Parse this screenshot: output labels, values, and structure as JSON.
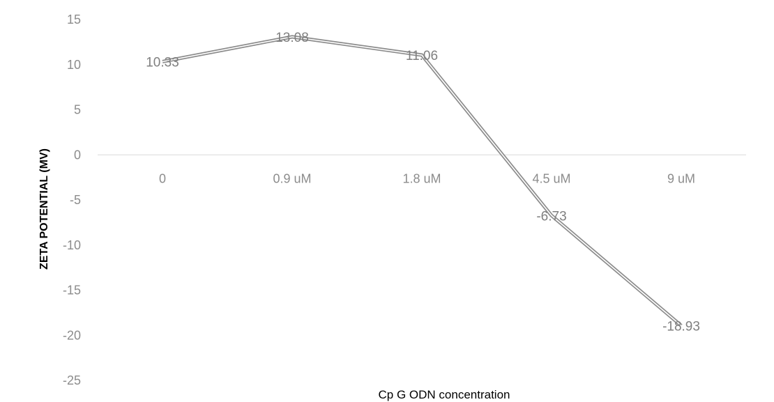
{
  "chart_data": {
    "type": "line",
    "title": "",
    "xlabel": "Cp G ODN concentration",
    "ylabel": "ZETA POTENTIAL (MV)",
    "categories": [
      "0",
      "0.9 uM",
      "1.8 uM",
      "4.5 uM",
      "9 uM"
    ],
    "series": [
      {
        "values": [
          10.33,
          13.08,
          11.06,
          -6.73,
          -18.93
        ],
        "labels": [
          "10.33",
          "13.08",
          "11.06",
          "-6.73",
          "-18.93"
        ]
      }
    ],
    "ylim": [
      -25,
      15
    ],
    "yticks": [
      -25,
      -20,
      -15,
      -10,
      -5,
      0,
      5,
      10,
      15
    ],
    "grid": false,
    "legend": "none",
    "colors": {
      "line": "#8c8c8c",
      "axis": "#d9d9d9",
      "tick_text": "#8c8c8c"
    }
  }
}
